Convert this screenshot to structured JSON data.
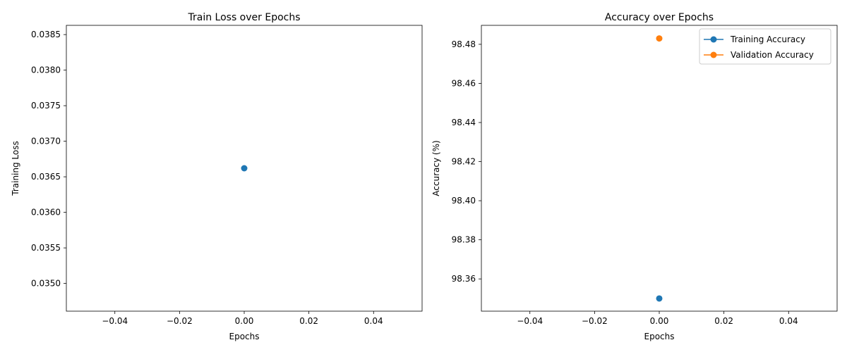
{
  "chart_data": [
    {
      "type": "line",
      "title": "Train Loss over Epochs",
      "xlabel": "Epochs",
      "ylabel": "Training Loss",
      "xlim": [
        -0.055,
        0.055
      ],
      "ylim": [
        0.03461,
        0.03863
      ],
      "xticks": [
        -0.04,
        -0.02,
        0.0,
        0.02,
        0.04
      ],
      "xtick_labels": [
        "−0.04",
        "−0.02",
        "0.00",
        "0.02",
        "0.04"
      ],
      "yticks": [
        0.035,
        0.0355,
        0.036,
        0.0365,
        0.037,
        0.0375,
        0.038,
        0.0385
      ],
      "ytick_labels": [
        "0.0350",
        "0.0355",
        "0.0360",
        "0.0365",
        "0.0370",
        "0.0375",
        "0.0380",
        "0.0385"
      ],
      "grid": false,
      "legend": null,
      "series": [
        {
          "color": "#1f77b4",
          "marker": "o",
          "x": [
            0
          ],
          "y": [
            0.03662
          ]
        }
      ]
    },
    {
      "type": "line",
      "title": "Accuracy over Epochs",
      "xlabel": "Epochs",
      "ylabel": "Accuracy (%)",
      "xlim": [
        -0.055,
        0.055
      ],
      "ylim": [
        98.3435,
        98.4897
      ],
      "xticks": [
        -0.04,
        -0.02,
        0.0,
        0.02,
        0.04
      ],
      "xtick_labels": [
        "−0.04",
        "−0.02",
        "0.00",
        "0.02",
        "0.04"
      ],
      "yticks": [
        98.36,
        98.38,
        98.4,
        98.42,
        98.44,
        98.46,
        98.48
      ],
      "ytick_labels": [
        "98.36",
        "98.38",
        "98.40",
        "98.42",
        "98.44",
        "98.46",
        "98.48"
      ],
      "grid": false,
      "legend": "upper right",
      "series": [
        {
          "name": "Training Accuracy",
          "color": "#1f77b4",
          "marker": "o",
          "x": [
            0
          ],
          "y": [
            98.35
          ]
        },
        {
          "name": "Validation Accuracy",
          "color": "#ff7f0e",
          "marker": "o",
          "x": [
            0
          ],
          "y": [
            98.483
          ]
        }
      ]
    }
  ]
}
